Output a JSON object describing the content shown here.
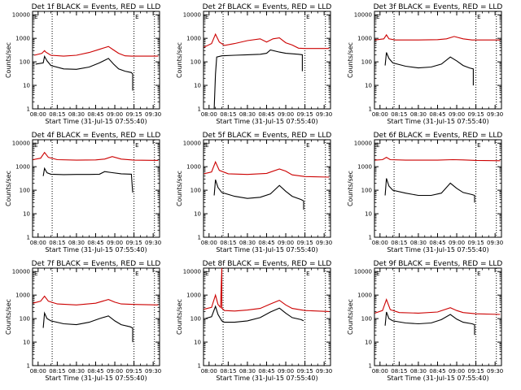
{
  "chart_data": [
    {
      "type": "line",
      "title": "Det 1f BLACK = Events, RED = LLD",
      "xlabel": "Start Time (31-Jul-15 07:55:40)",
      "ylabel": "Counts/sec",
      "yscale": "log",
      "ylim": [
        1,
        14000
      ],
      "xlim": [
        "07:55:40",
        "09:35:00"
      ],
      "xticks": [
        "08:00",
        "08:15",
        "08:30",
        "08:45",
        "09:00",
        "09:15",
        "09:30"
      ],
      "yticks": [
        "1",
        "10",
        "100",
        "1000",
        "10000"
      ],
      "markers": {
        "dotted_lines": [
          "08:11",
          "09:15",
          "09:31"
        ],
        "labels": [
          {
            "text": "E",
            "at": "07:57"
          },
          {
            "text": "E",
            "at": "09:16"
          }
        ]
      },
      "series": [
        {
          "color": "#cc0000",
          "x": [
            "07:57",
            "08:03",
            "08:05",
            "08:06",
            "08:10",
            "08:20",
            "08:30",
            "08:40",
            "08:48",
            "08:55",
            "08:59",
            "09:03",
            "09:08",
            "09:13",
            "09:15",
            "09:34"
          ],
          "y": [
            190,
            230,
            300,
            260,
            190,
            175,
            190,
            250,
            340,
            450,
            320,
            230,
            180,
            175,
            175,
            175
          ]
        },
        {
          "color": "#000000",
          "x": [
            "07:58",
            "08:04",
            "08:05",
            "08:07",
            "08:10",
            "08:20",
            "08:30",
            "08:40",
            "08:48",
            "08:55",
            "08:59",
            "09:03",
            "09:08",
            "09:13",
            "09:14",
            "09:14"
          ],
          "y": [
            80,
            90,
            170,
            110,
            70,
            50,
            48,
            60,
            90,
            140,
            80,
            50,
            40,
            35,
            30,
            6
          ]
        }
      ]
    },
    {
      "type": "line",
      "title": "Det 2f BLACK = Events, RED = LLD",
      "xlabel": "Start Time (31-Jul-15 07:55:40)",
      "ylabel": "Counts/sec",
      "yscale": "log",
      "ylim": [
        1,
        14000
      ],
      "xlim": [
        "07:55:40",
        "09:35:00"
      ],
      "xticks": [
        "08:00",
        "08:15",
        "08:30",
        "08:45",
        "09:00",
        "09:15",
        "09:30"
      ],
      "yticks": [
        "1",
        "10",
        "100",
        "1000",
        "10000"
      ],
      "markers": {
        "dotted_lines": [
          "08:11",
          "09:15",
          "09:31"
        ],
        "labels": [
          {
            "text": "E",
            "at": "07:57"
          },
          {
            "text": "E",
            "at": "09:16"
          }
        ]
      },
      "series": [
        {
          "color": "#cc0000",
          "x": [
            "07:56",
            "08:02",
            "08:05",
            "08:08",
            "08:12",
            "08:20",
            "08:30",
            "08:40",
            "08:45",
            "08:50",
            "08:55",
            "09:00",
            "09:05",
            "09:10",
            "09:15",
            "09:34"
          ],
          "y": [
            420,
            600,
            1500,
            700,
            500,
            600,
            800,
            950,
            700,
            950,
            1050,
            650,
            520,
            380,
            370,
            370
          ]
        },
        {
          "color": "#000000",
          "x": [
            "08:03",
            "08:04",
            "08:05",
            "08:06",
            "08:10",
            "08:20",
            "08:30",
            "08:40",
            "08:45",
            "08:48",
            "08:55",
            "09:00",
            "09:10",
            "09:13",
            "09:13"
          ],
          "y": [
            1,
            1,
            30,
            160,
            180,
            190,
            200,
            210,
            230,
            320,
            260,
            230,
            210,
            200,
            40
          ]
        }
      ]
    },
    {
      "type": "line",
      "title": "Det 3f BLACK = Events, RED = LLD",
      "xlabel": "Start Time (31-Jul-15 07:55:40)",
      "ylabel": "Counts/sec",
      "yscale": "log",
      "ylim": [
        1,
        14000
      ],
      "xlim": [
        "07:55:40",
        "09:35:00"
      ],
      "xticks": [
        "08:00",
        "08:15",
        "08:30",
        "08:45",
        "09:00",
        "09:15",
        "09:30"
      ],
      "yticks": [
        "1",
        "10",
        "100",
        "1000",
        "10000"
      ],
      "markers": {
        "dotted_lines": [
          "08:11",
          "09:15",
          "09:31"
        ],
        "labels": [
          {
            "text": "E",
            "at": "07:57"
          },
          {
            "text": "E",
            "at": "09:16"
          }
        ]
      },
      "series": [
        {
          "color": "#cc0000",
          "x": [
            "07:56",
            "08:03",
            "08:05",
            "08:07",
            "08:12",
            "08:30",
            "08:45",
            "08:52",
            "08:58",
            "09:05",
            "09:12",
            "09:34"
          ],
          "y": [
            850,
            950,
            1400,
            950,
            850,
            850,
            880,
            950,
            1200,
            950,
            850,
            850
          ]
        },
        {
          "color": "#000000",
          "x": [
            "08:04",
            "08:05",
            "08:07",
            "08:10",
            "08:20",
            "08:30",
            "08:40",
            "08:48",
            "08:55",
            "09:00",
            "09:05",
            "09:10",
            "09:13",
            "09:13"
          ],
          "y": [
            70,
            250,
            140,
            90,
            65,
            55,
            60,
            80,
            160,
            110,
            70,
            55,
            50,
            10
          ]
        }
      ]
    },
    {
      "type": "line",
      "title": "Det 4f BLACK = Events, RED = LLD",
      "xlabel": "Start Time (31-Jul-15 07:55:40)",
      "ylabel": "Counts/sec",
      "yscale": "log",
      "ylim": [
        1,
        14000
      ],
      "xlim": [
        "07:55:40",
        "09:35:00"
      ],
      "xticks": [
        "08:00",
        "08:15",
        "08:30",
        "08:45",
        "09:00",
        "09:15",
        "09:30"
      ],
      "yticks": [
        "1",
        "10",
        "100",
        "1000",
        "10000"
      ],
      "markers": {
        "dotted_lines": [
          "08:11",
          "09:15",
          "09:31"
        ],
        "labels": [
          {
            "text": "E",
            "at": "07:57"
          },
          {
            "text": "E",
            "at": "09:16"
          }
        ]
      },
      "series": [
        {
          "color": "#cc0000",
          "x": [
            "07:56",
            "08:02",
            "08:05",
            "08:08",
            "08:15",
            "08:30",
            "08:45",
            "08:52",
            "08:58",
            "09:05",
            "09:15",
            "09:34"
          ],
          "y": [
            2000,
            2300,
            4000,
            2500,
            2000,
            1900,
            1950,
            2100,
            2700,
            2100,
            1900,
            1850
          ]
        },
        {
          "color": "#000000",
          "x": [
            "08:04",
            "08:05",
            "08:07",
            "08:10",
            "08:20",
            "08:30",
            "08:40",
            "08:48",
            "08:52",
            "08:58",
            "09:05",
            "09:13",
            "09:14"
          ],
          "y": [
            400,
            850,
            550,
            480,
            460,
            470,
            470,
            480,
            620,
            560,
            500,
            480,
            80
          ]
        }
      ]
    },
    {
      "type": "line",
      "title": "Det 5f BLACK = Events, RED = LLD",
      "xlabel": "Start Time (31-Jul-15 07:55:40)",
      "ylabel": "Counts/sec",
      "yscale": "log",
      "ylim": [
        1,
        14000
      ],
      "xlim": [
        "07:55:40",
        "09:35:00"
      ],
      "xticks": [
        "08:00",
        "08:15",
        "08:30",
        "08:45",
        "09:00",
        "09:15",
        "09:30"
      ],
      "yticks": [
        "1",
        "10",
        "100",
        "1000",
        "10000"
      ],
      "markers": {
        "dotted_lines": [
          "08:11",
          "09:15",
          "09:31"
        ],
        "labels": [
          {
            "text": "E",
            "at": "07:57"
          },
          {
            "text": "E",
            "at": "09:16"
          }
        ]
      },
      "series": [
        {
          "color": "#cc0000",
          "x": [
            "07:56",
            "08:02",
            "08:05",
            "08:08",
            "08:15",
            "08:30",
            "08:45",
            "08:55",
            "09:00",
            "09:05",
            "09:15",
            "09:34"
          ],
          "y": [
            500,
            600,
            1600,
            700,
            500,
            470,
            520,
            800,
            650,
            450,
            380,
            360
          ]
        },
        {
          "color": "#000000",
          "x": [
            "08:04",
            "08:05",
            "08:07",
            "08:10",
            "08:20",
            "08:30",
            "08:40",
            "08:48",
            "08:55",
            "09:00",
            "09:05",
            "09:12",
            "09:14",
            "09:14"
          ],
          "y": [
            60,
            280,
            130,
            80,
            55,
            45,
            50,
            70,
            160,
            90,
            55,
            40,
            35,
            15
          ]
        }
      ]
    },
    {
      "type": "line",
      "title": "Det 6f BLACK = Events, RED = LLD",
      "xlabel": "Start Time (31-Jul-15 07:55:40)",
      "ylabel": "Counts/sec",
      "yscale": "log",
      "ylim": [
        1,
        14000
      ],
      "xlim": [
        "07:55:40",
        "09:35:00"
      ],
      "xticks": [
        "08:00",
        "08:15",
        "08:30",
        "08:45",
        "09:00",
        "09:15",
        "09:30"
      ],
      "yticks": [
        "1",
        "10",
        "100",
        "1000",
        "10000"
      ],
      "markers": {
        "dotted_lines": [
          "08:11",
          "09:15",
          "09:31"
        ],
        "labels": [
          {
            "text": "E",
            "at": "07:57"
          },
          {
            "text": "E",
            "at": "09:16"
          }
        ]
      },
      "series": [
        {
          "color": "#cc0000",
          "x": [
            "07:56",
            "08:02",
            "08:05",
            "08:08",
            "08:20",
            "08:45",
            "08:57",
            "09:05",
            "09:15",
            "09:34"
          ],
          "y": [
            1900,
            2000,
            2500,
            2000,
            1900,
            1900,
            2000,
            1950,
            1850,
            1800
          ]
        },
        {
          "color": "#000000",
          "x": [
            "08:04",
            "08:05",
            "08:07",
            "08:10",
            "08:20",
            "08:30",
            "08:40",
            "08:48",
            "08:55",
            "09:00",
            "09:05",
            "09:12",
            "09:14",
            "09:14"
          ],
          "y": [
            60,
            320,
            150,
            100,
            75,
            60,
            60,
            75,
            200,
            120,
            80,
            65,
            60,
            30
          ]
        }
      ]
    },
    {
      "type": "line",
      "title": "Det 7f BLACK = Events, RED = LLD",
      "xlabel": "Start Time (31-Jul-15 07:55:40)",
      "ylabel": "Counts/sec",
      "yscale": "log",
      "ylim": [
        1,
        14000
      ],
      "xlim": [
        "07:55:40",
        "09:35:00"
      ],
      "xticks": [
        "08:00",
        "08:15",
        "08:30",
        "08:45",
        "09:00",
        "09:15",
        "09:30"
      ],
      "yticks": [
        "1",
        "10",
        "100",
        "1000",
        "10000"
      ],
      "markers": {
        "dotted_lines": [
          "08:11",
          "09:15",
          "09:31"
        ],
        "labels": [
          {
            "text": "E",
            "at": "07:57"
          },
          {
            "text": "E",
            "at": "09:16"
          }
        ]
      },
      "series": [
        {
          "color": "#cc0000",
          "x": [
            "07:56",
            "08:02",
            "08:05",
            "08:08",
            "08:15",
            "08:30",
            "08:45",
            "08:55",
            "09:00",
            "09:05",
            "09:15",
            "09:34"
          ],
          "y": [
            450,
            550,
            900,
            550,
            420,
            380,
            450,
            650,
            500,
            420,
            400,
            380
          ]
        },
        {
          "color": "#000000",
          "x": [
            "08:04",
            "08:05",
            "08:07",
            "08:10",
            "08:20",
            "08:30",
            "08:40",
            "08:48",
            "08:55",
            "09:00",
            "09:05",
            "09:12",
            "09:14",
            "09:14"
          ],
          "y": [
            40,
            170,
            100,
            80,
            60,
            55,
            70,
            100,
            130,
            80,
            55,
            45,
            40,
            10
          ]
        }
      ]
    },
    {
      "type": "line",
      "title": "Det 8f BLACK = Events, RED = LLD",
      "xlabel": "Start Time (31-Jul-15 07:55:40)",
      "ylabel": "Counts/sec",
      "yscale": "log",
      "ylim": [
        1,
        14000
      ],
      "xlim": [
        "07:55:40",
        "09:35:00"
      ],
      "xticks": [
        "08:00",
        "08:15",
        "08:30",
        "08:45",
        "09:00",
        "09:15",
        "09:30"
      ],
      "yticks": [
        "1",
        "10",
        "100",
        "1000",
        "10000"
      ],
      "markers": {
        "dotted_lines": [
          "08:11",
          "09:15",
          "09:31"
        ],
        "labels": [
          {
            "text": "E",
            "at": "07:57"
          },
          {
            "text": "E",
            "at": "09:16"
          }
        ]
      },
      "series": [
        {
          "color": "#cc0000",
          "x": [
            "07:56",
            "08:02",
            "08:05",
            "08:07",
            "08:09",
            "08:10",
            "08:10",
            "08:12",
            "08:20",
            "08:30",
            "08:40",
            "08:48",
            "08:55",
            "09:00",
            "09:05",
            "09:15",
            "09:34"
          ],
          "y": [
            250,
            300,
            1000,
            400,
            300,
            14000,
            280,
            220,
            210,
            230,
            270,
            420,
            600,
            380,
            270,
            220,
            200
          ]
        },
        {
          "color": "#000000",
          "x": [
            "07:57",
            "08:02",
            "08:05",
            "08:07",
            "08:10",
            "08:12",
            "08:20",
            "08:30",
            "08:40",
            "08:48",
            "08:55",
            "09:00",
            "09:05",
            "09:12",
            "09:14"
          ],
          "y": [
            100,
            120,
            330,
            150,
            80,
            70,
            70,
            80,
            110,
            190,
            280,
            170,
            110,
            90,
            80
          ]
        }
      ]
    },
    {
      "type": "line",
      "title": "Det 9f BLACK = Events, RED = LLD",
      "xlabel": "Start Time (31-Jul-15 07:55:40)",
      "ylabel": "Counts/sec",
      "yscale": "log",
      "ylim": [
        1,
        14000
      ],
      "xlim": [
        "07:55:40",
        "09:35:00"
      ],
      "xticks": [
        "08:00",
        "08:15",
        "08:30",
        "08:45",
        "09:00",
        "09:15",
        "09:30"
      ],
      "yticks": [
        "1",
        "10",
        "100",
        "1000",
        "10000"
      ],
      "markers": {
        "dotted_lines": [
          "08:11",
          "09:15",
          "09:31"
        ],
        "labels": [
          {
            "text": "E",
            "at": "07:57"
          },
          {
            "text": "E",
            "at": "09:16"
          }
        ]
      },
      "series": [
        {
          "color": "#cc0000",
          "x": [
            "07:56",
            "08:02",
            "08:05",
            "08:08",
            "08:15",
            "08:30",
            "08:45",
            "08:55",
            "09:00",
            "09:05",
            "09:15",
            "09:34"
          ],
          "y": [
            170,
            220,
            650,
            240,
            180,
            170,
            190,
            290,
            220,
            180,
            160,
            150
          ]
        },
        {
          "color": "#000000",
          "x": [
            "08:04",
            "08:05",
            "08:07",
            "08:10",
            "08:20",
            "08:30",
            "08:40",
            "08:48",
            "08:55",
            "09:00",
            "09:05",
            "09:12",
            "09:14",
            "09:14"
          ],
          "y": [
            50,
            190,
            100,
            80,
            65,
            60,
            65,
            90,
            150,
            95,
            70,
            60,
            55,
            20
          ]
        }
      ]
    }
  ]
}
